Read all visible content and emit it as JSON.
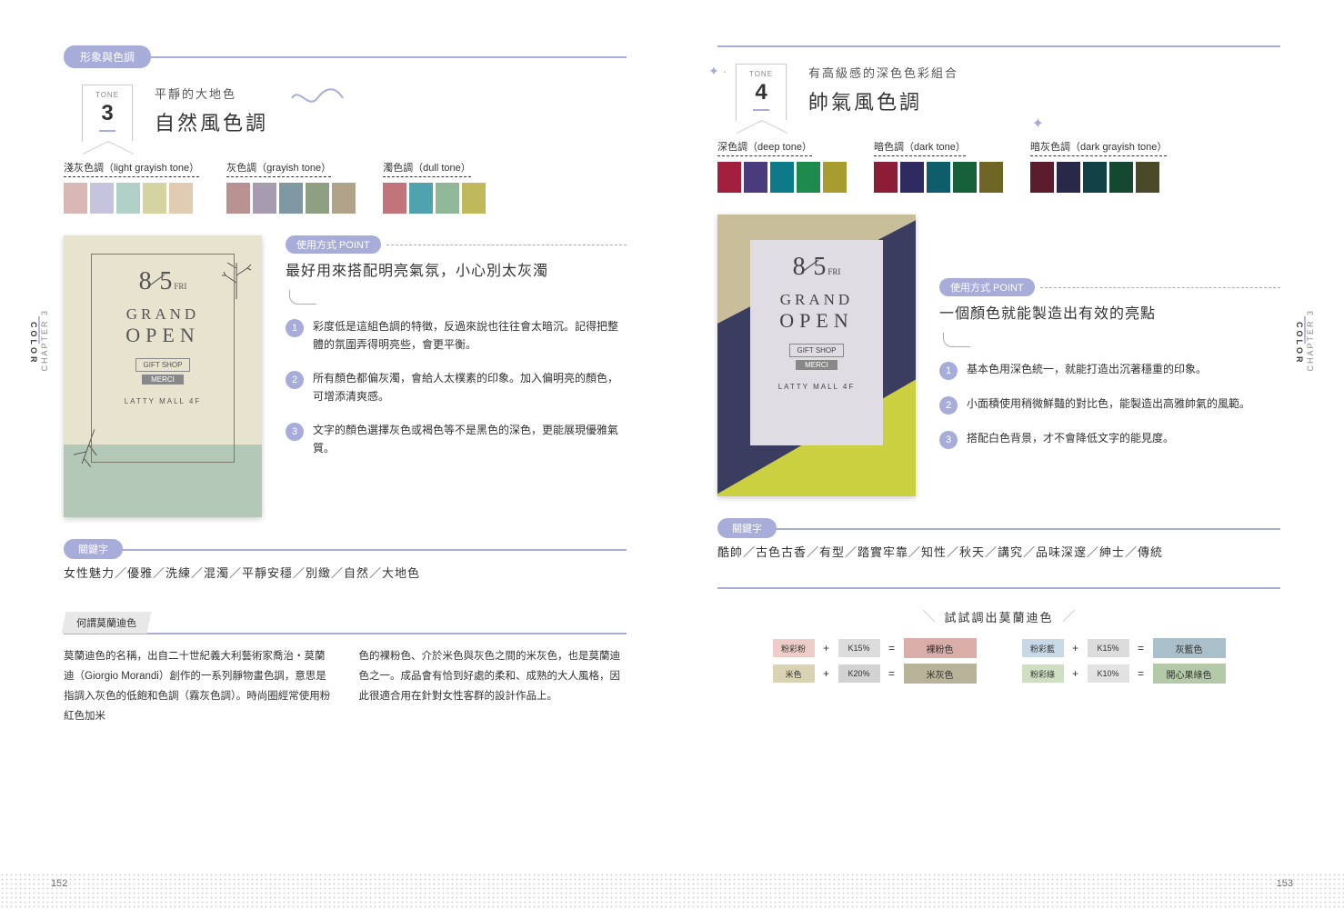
{
  "chapter": "CHAPTER 3",
  "color_label": "COLOR",
  "header_badge": "形象與色調",
  "page_left_num": "152",
  "page_right_num": "153",
  "tone3": {
    "label": "TONE",
    "num": "3",
    "sub": "平靜的大地色",
    "title": "自然風色調",
    "groups": [
      {
        "title": "淺灰色調（light grayish tone）",
        "colors": [
          "#d9b7b7",
          "#c5c3dd",
          "#b0d0c8",
          "#d6d3a3",
          "#e0cbb3"
        ]
      },
      {
        "title": "灰色調（grayish tone）",
        "colors": [
          "#bb9292",
          "#a79bb0",
          "#7f98a3",
          "#8fa082",
          "#b0a389"
        ]
      },
      {
        "title": "濁色調（dull tone）",
        "colors": [
          "#c1757b",
          "#4fa3ae",
          "#8fb798",
          "#bfb95b"
        ]
      }
    ],
    "card": {
      "date_m": "8",
      "date_d": "5",
      "fri": "FRI",
      "l1": "GRAND",
      "l2": "OPEN",
      "gift": "GIFT SHOP",
      "merci": "MERCI",
      "mall": "LATTY MALL 4F"
    },
    "point_badge": "使用方式 POINT",
    "point_title": "最好用來搭配明亮氣氛，小心別太灰濁",
    "points": [
      "彩度低是這組色調的特徵，反過來說也往往會太暗沉。記得把整體的氛圍弄得明亮些，會更平衡。",
      "所有顏色都偏灰濁，會給人太樸素的印象。加入偏明亮的顏色，可增添清爽感。",
      "文字的顏色選擇灰色或褐色等不是黑色的深色，更能展現優雅氣質。"
    ],
    "kw_badge": "關鍵字",
    "keywords": "女性魅力／優雅／洗練／混濁／平靜安穩／別緻／自然／大地色"
  },
  "tone4": {
    "label": "TONE",
    "num": "4",
    "sub": "有高級感的深色色彩組合",
    "title": "帥氣風色調",
    "groups": [
      {
        "title": "深色調（deep tone）",
        "colors": [
          "#a31f3e",
          "#4a3b7d",
          "#0d7a8a",
          "#1f8a4e",
          "#a89b2f"
        ]
      },
      {
        "title": "暗色調（dark tone）",
        "colors": [
          "#8b1d37",
          "#2f2a5f",
          "#0d5d6a",
          "#16603a",
          "#6e6525"
        ]
      },
      {
        "title": "暗灰色調（dark grayish tone）",
        "colors": [
          "#5d1c2e",
          "#2a2848",
          "#114045",
          "#154831",
          "#4a4a2a"
        ]
      }
    ],
    "card": {
      "date_m": "8",
      "date_d": "5",
      "fri": "FRI",
      "l1": "GRAND",
      "l2": "OPEN",
      "gift": "GIFT SHOP",
      "merci": "MERCI",
      "mall": "LATTY MALL 4F"
    },
    "point_badge": "使用方式 POINT",
    "point_title": "一個顏色就能製造出有效的亮點",
    "points": [
      "基本色用深色統一，就能打造出沉著穩重的印象。",
      "小面積使用稍微鮮豔的對比色，能製造出高雅帥氣的風範。",
      "搭配白色背景，才不會降低文字的能見度。"
    ],
    "kw_badge": "關鍵字",
    "keywords": "酷帥／古色古香／有型／踏實牢靠／知性／秋天／講究／品味深邃／紳士／傳統"
  },
  "morandi": {
    "tab": "何謂莫蘭迪色",
    "col1": "莫蘭迪色的名稱，出自二十世紀義大利藝術家喬治・莫蘭迪（Giorgio Morandi）創作的一系列靜物畫色調，意思是指調入灰色的低飽和色調（霧灰色調）。時尚圈經常使用粉紅色加米",
    "col2": "色的裸粉色、介於米色與灰色之間的米灰色，也是莫蘭迪色之一。成品會有恰到好處的柔和、成熟的大人風格，因此很適合用在針對女性客群的設計作品上。"
  },
  "mix": {
    "title": "試試調出莫蘭迪色",
    "rows": [
      {
        "a": {
          "c": "#eecdc8",
          "t": "粉彩粉"
        },
        "b": {
          "c": "#dcdcdc",
          "t": "K15%"
        },
        "r": {
          "c": "#d9aea9",
          "t": "裸粉色"
        }
      },
      {
        "a": {
          "c": "#d9d3b3",
          "t": "米色"
        },
        "b": {
          "c": "#d2d2d2",
          "t": "K20%"
        },
        "r": {
          "c": "#b8b398",
          "t": "米灰色"
        }
      },
      {
        "a": {
          "c": "#c7d8e6",
          "t": "粉彩藍"
        },
        "b": {
          "c": "#dcdcdc",
          "t": "K15%"
        },
        "r": {
          "c": "#a9bfc9",
          "t": "灰藍色"
        }
      },
      {
        "a": {
          "c": "#cfe0c2",
          "t": "粉彩綠"
        },
        "b": {
          "c": "#e2e2e2",
          "t": "K10%"
        },
        "r": {
          "c": "#b4c9a8",
          "t": "開心果綠色"
        }
      }
    ],
    "plus": "+",
    "eq": "="
  }
}
